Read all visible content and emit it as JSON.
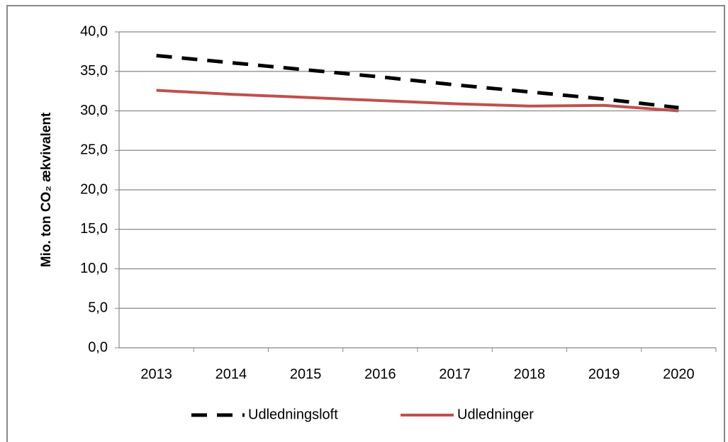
{
  "chart_data": {
    "type": "line",
    "y_label": "Mio. ton CO₂ ækvivalent",
    "categories": [
      "2013",
      "2014",
      "2015",
      "2016",
      "2017",
      "2018",
      "2019",
      "2020"
    ],
    "series": [
      {
        "name": "Udledningsloft",
        "color": "#000000",
        "dash": true,
        "values": [
          37.0,
          36.1,
          35.2,
          34.3,
          33.3,
          32.4,
          31.5,
          30.4
        ]
      },
      {
        "name": "Udledninger",
        "color": "#c0504d",
        "dash": false,
        "values": [
          32.6,
          32.1,
          31.7,
          31.3,
          30.9,
          30.6,
          30.7,
          30.0
        ]
      }
    ],
    "ylim": [
      0,
      40
    ],
    "yticks": [
      {
        "value": 0,
        "label": "0,0"
      },
      {
        "value": 5,
        "label": "5,0"
      },
      {
        "value": 10,
        "label": "10,0"
      },
      {
        "value": 15,
        "label": "15,0"
      },
      {
        "value": 20,
        "label": "20,0"
      },
      {
        "value": 25,
        "label": "25,0"
      },
      {
        "value": 30,
        "label": "30,0"
      },
      {
        "value": 35,
        "label": "35,0"
      },
      {
        "value": 40,
        "label": "40,0"
      }
    ],
    "grid": true
  }
}
